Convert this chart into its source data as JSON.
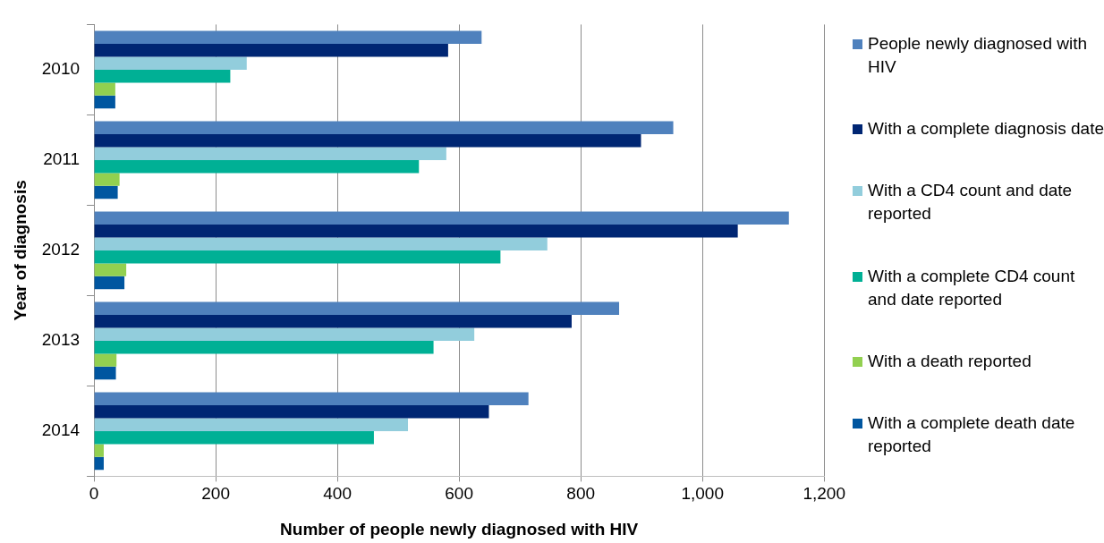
{
  "chart_data": {
    "type": "bar",
    "orientation": "horizontal",
    "xlabel": "Number of people newly diagnosed with HIV",
    "ylabel": "Year of diagnosis",
    "categories": [
      "2010",
      "2011",
      "2012",
      "2013",
      "2014"
    ],
    "series": [
      {
        "name": "People newly diagnosed with HIV",
        "color": "#4f81bd",
        "values": [
          637,
          952,
          1142,
          863,
          714
        ]
      },
      {
        "name": "With a complete diagnosis date",
        "color": "#002673",
        "values": [
          582,
          899,
          1058,
          785,
          649
        ]
      },
      {
        "name": "With a CD4 count and date reported",
        "color": "#92cddc",
        "values": [
          251,
          579,
          745,
          625,
          516
        ]
      },
      {
        "name": "With a complete CD4 count and date reported",
        "color": "#00b095",
        "values": [
          224,
          534,
          668,
          558,
          460
        ]
      },
      {
        "name": "With a death reported",
        "color": "#92d050",
        "values": [
          35,
          42,
          53,
          37,
          16
        ]
      },
      {
        "name": "With a complete death date reported",
        "color": "#0056a0",
        "values": [
          35,
          39,
          50,
          36,
          16
        ]
      }
    ],
    "xlim": [
      0,
      1200
    ],
    "xticks": [
      0,
      {
        "value": 200,
        "label": "200"
      },
      {
        "value": 400,
        "label": "400"
      },
      {
        "value": 600,
        "label": "600"
      },
      {
        "value": 800,
        "label": "800"
      },
      {
        "value": 1000,
        "label": "1,000"
      },
      {
        "value": 1200,
        "label": "1,200"
      }
    ],
    "grid": "x",
    "legend": "right"
  }
}
